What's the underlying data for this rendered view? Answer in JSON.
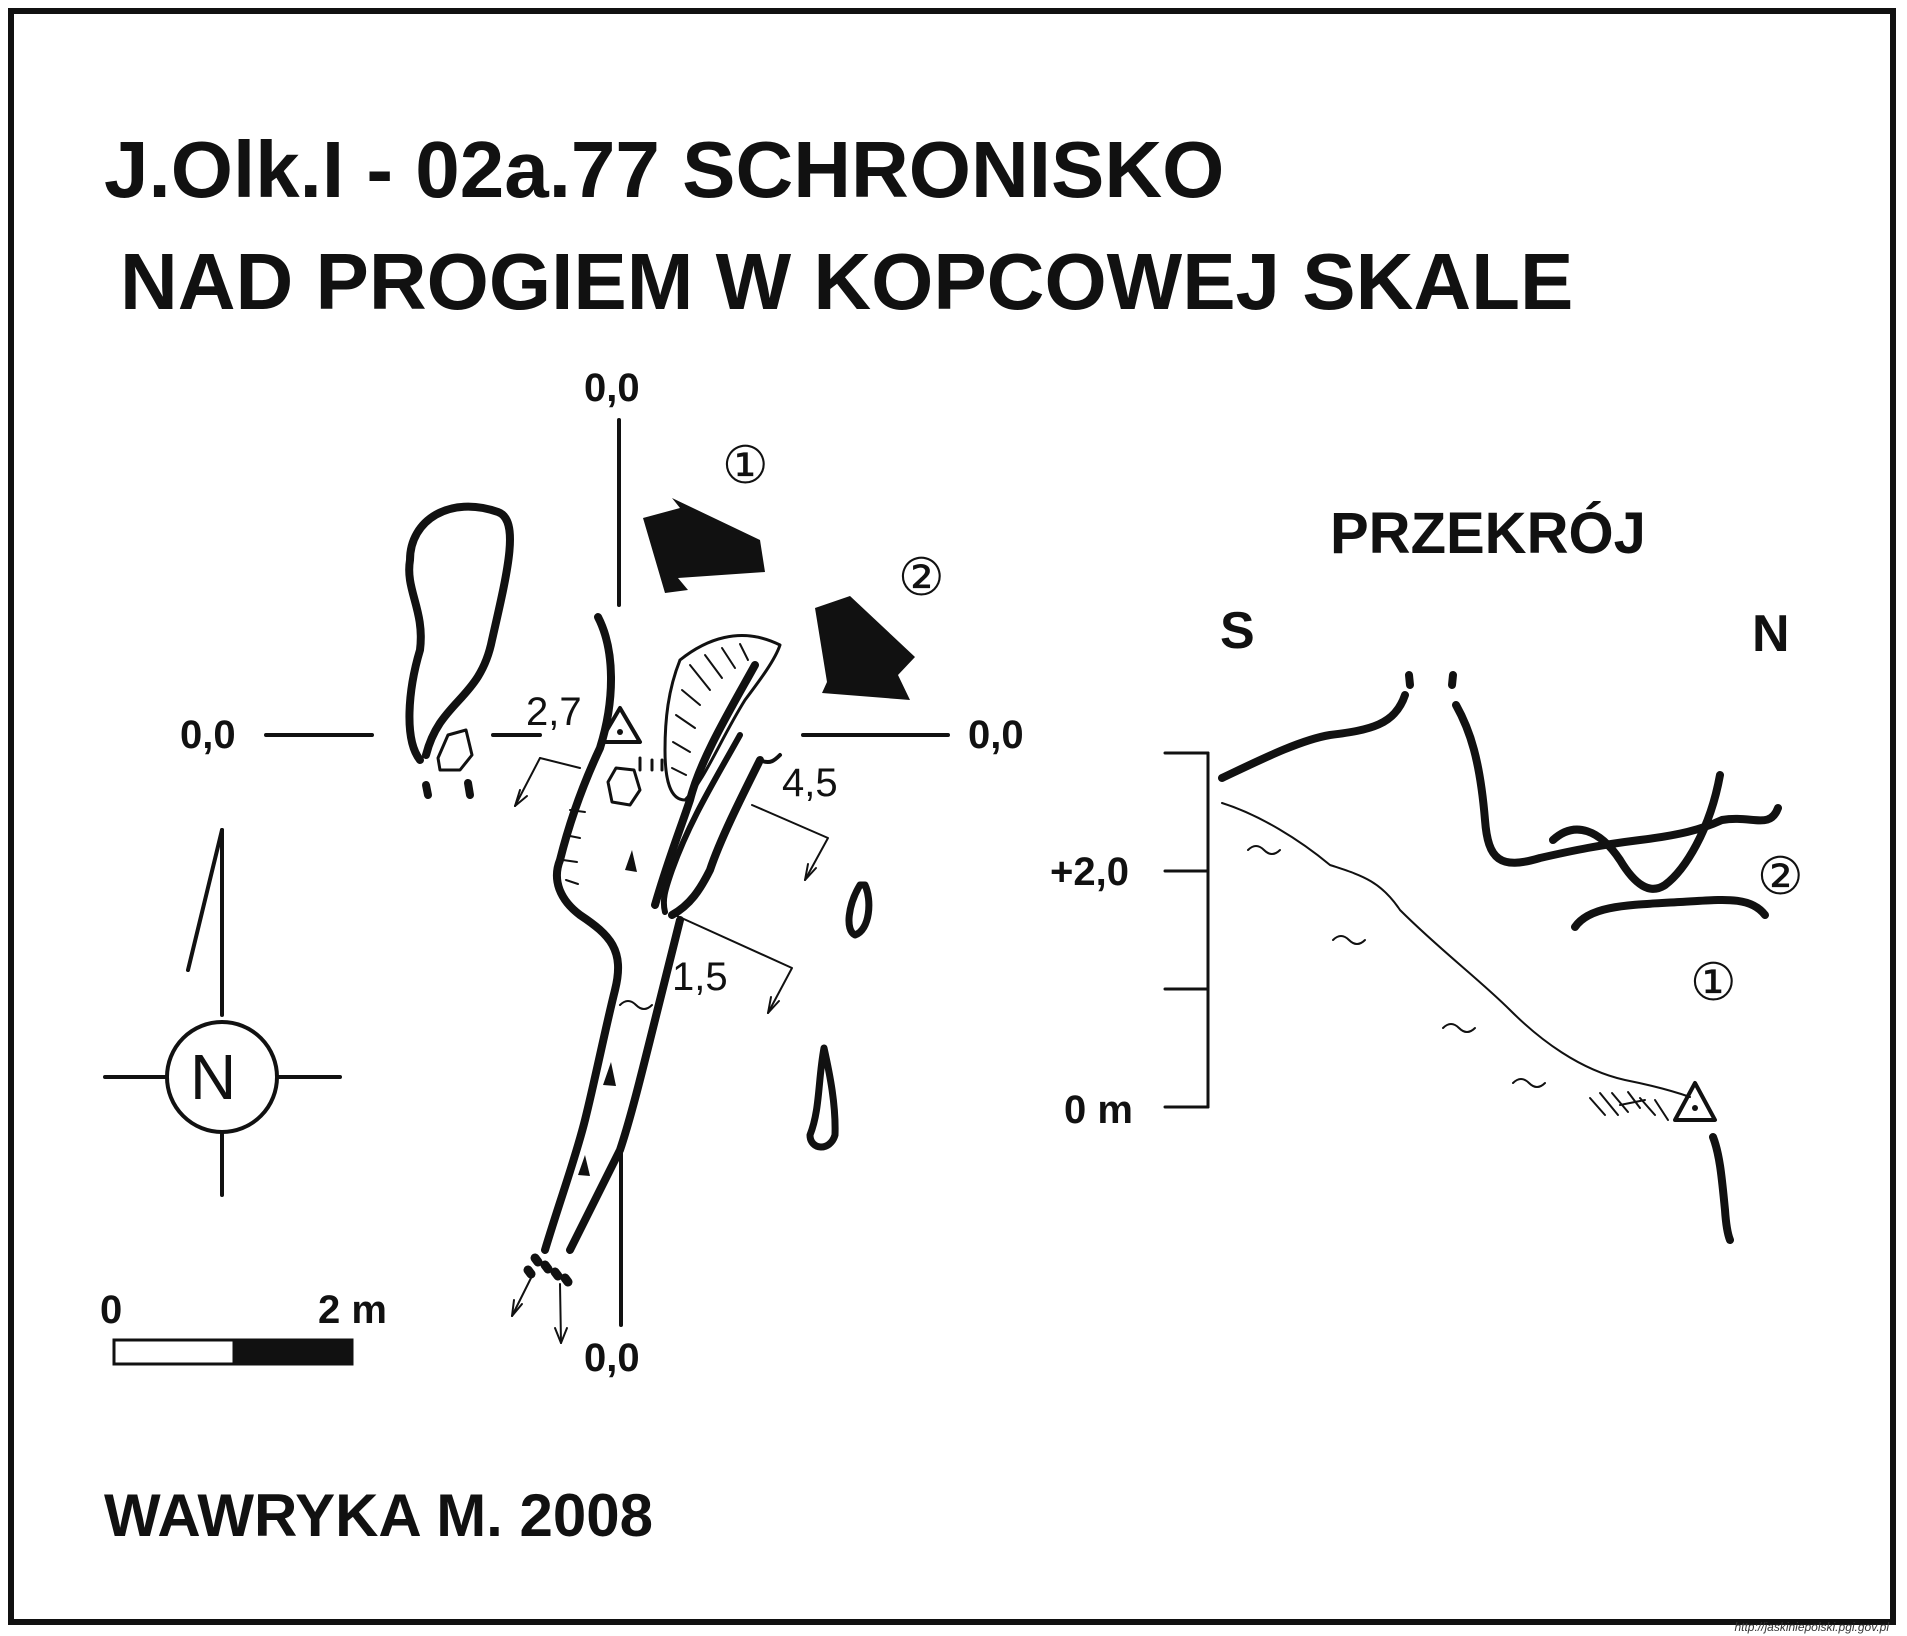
{
  "title": {
    "line1": "J.Olk.I - 02a.77  SCHRONISKO",
    "line2": "NAD PROGIEM W KOPCOWEJ SKALE"
  },
  "author": "WAWRYKA M. 2008",
  "plan": {
    "ref_top": "0,0",
    "ref_left": "0,0",
    "ref_right": "0,0",
    "ref_bottom": "0,0",
    "depth_a": "2,7",
    "depth_b": "4,5",
    "depth_c": "1,5",
    "entrance_1": "①",
    "entrance_2": "②"
  },
  "north_arrow": {
    "letter": "N"
  },
  "scale_bar": {
    "start": "0",
    "end": "2 m"
  },
  "section": {
    "title": "PRZEKRÓJ",
    "left_dir": "S",
    "right_dir": "N",
    "level_high": "+2,0",
    "level_zero": "0 m",
    "entrance_1": "①",
    "entrance_2": "②"
  },
  "source_url": "http://jaskiniepolski.pgi.gov.pl"
}
